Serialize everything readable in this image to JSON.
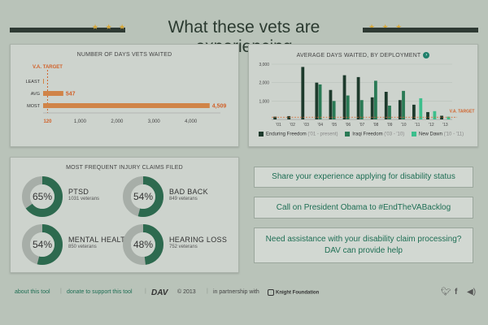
{
  "header": {
    "title": "What these vets are experiencing",
    "stars": "★ ★ ★"
  },
  "days_chart": {
    "title": "NUMBER OF DAYS VETS WAITED",
    "target_label": "V.A. TARGET",
    "target_value_label": "120",
    "bar_color": "#d08448",
    "target_color": "#d1622a",
    "chart_data": {
      "type": "bar",
      "orientation": "horizontal",
      "categories": [
        "LEAST",
        "AVG",
        "MOST"
      ],
      "values": [
        9,
        547,
        4509
      ],
      "value_labels": [
        "",
        "547",
        "4,509"
      ],
      "target": 120,
      "xlim": [
        0,
        4800
      ],
      "xticks": [
        120,
        1000,
        2000,
        3000,
        4000
      ],
      "xtick_labels": [
        "120",
        "1,000",
        "2,000",
        "3,000",
        "4,000"
      ]
    }
  },
  "deploy_chart": {
    "title": "AVERAGE DAYS WAITED, BY DEPLOYMENT",
    "info_icon": "info-icon",
    "target_label": "V.A. TARGET",
    "target_color": "#d1622a",
    "chart_data": {
      "type": "bar",
      "categories": [
        "'01",
        "'02",
        "'03",
        "'04",
        "'05",
        "'06",
        "'07",
        "'08",
        "'09",
        "'10",
        "'11",
        "'12",
        "'13"
      ],
      "ylim": [
        0,
        3000
      ],
      "yticks": [
        1000,
        2000,
        3000
      ],
      "ytick_labels": [
        "1,000",
        "2,000",
        "3,000"
      ],
      "target": 120,
      "series": [
        {
          "name": "Enduring Freedom",
          "sub": "('01 - present)",
          "color": "#1d3a2c",
          "values": [
            150,
            180,
            2850,
            2000,
            1600,
            2400,
            2300,
            1200,
            1500,
            1050,
            800,
            400,
            200
          ]
        },
        {
          "name": "Iraqi Freedom",
          "sub": "('03 - '10)",
          "color": "#2a7a55",
          "values": [
            0,
            0,
            0,
            1900,
            1000,
            1300,
            1050,
            2100,
            750,
            1550,
            0,
            0,
            0
          ]
        },
        {
          "name": "New Dawn",
          "sub": "('10 - '11)",
          "color": "#3cbf8c",
          "values": [
            0,
            0,
            0,
            0,
            0,
            0,
            0,
            0,
            0,
            0,
            1150,
            450,
            150
          ]
        }
      ]
    }
  },
  "injury": {
    "title": "MOST FREQUENT INJURY CLAIMS FILED",
    "fill_color": "#2d6a4f",
    "track_color": "#a7aea8",
    "items": [
      {
        "pct_label": "65%",
        "pct": 65,
        "name": "PTSD",
        "sub": "1031 veterans"
      },
      {
        "pct_label": "54%",
        "pct": 54,
        "name": "BAD BACK",
        "sub": "849 veterans"
      },
      {
        "pct_label": "54%",
        "pct": 54,
        "name": "MENTAL HEALTH",
        "sub": "850 veterans"
      },
      {
        "pct_label": "48%",
        "pct": 48,
        "name": "HEARING LOSS",
        "sub": "752 veterans"
      }
    ]
  },
  "actions": {
    "share": "Share your experience applying for disability status",
    "call": "Call on President Obama to #EndTheVABacklog",
    "assist_line1": "Need assistance with your disability claim processing?",
    "assist_line2": "DAV can provide help"
  },
  "footer": {
    "about": "about this tool",
    "donate": "donate to support this tool",
    "dav": "DAV",
    "copyright": "© 2013",
    "partnership": "in partnership with",
    "knight": "Knight Foundation",
    "twitter_icon": "twitter-icon",
    "facebook_icon": "facebook-icon",
    "sound_icon": "sound-icon"
  }
}
